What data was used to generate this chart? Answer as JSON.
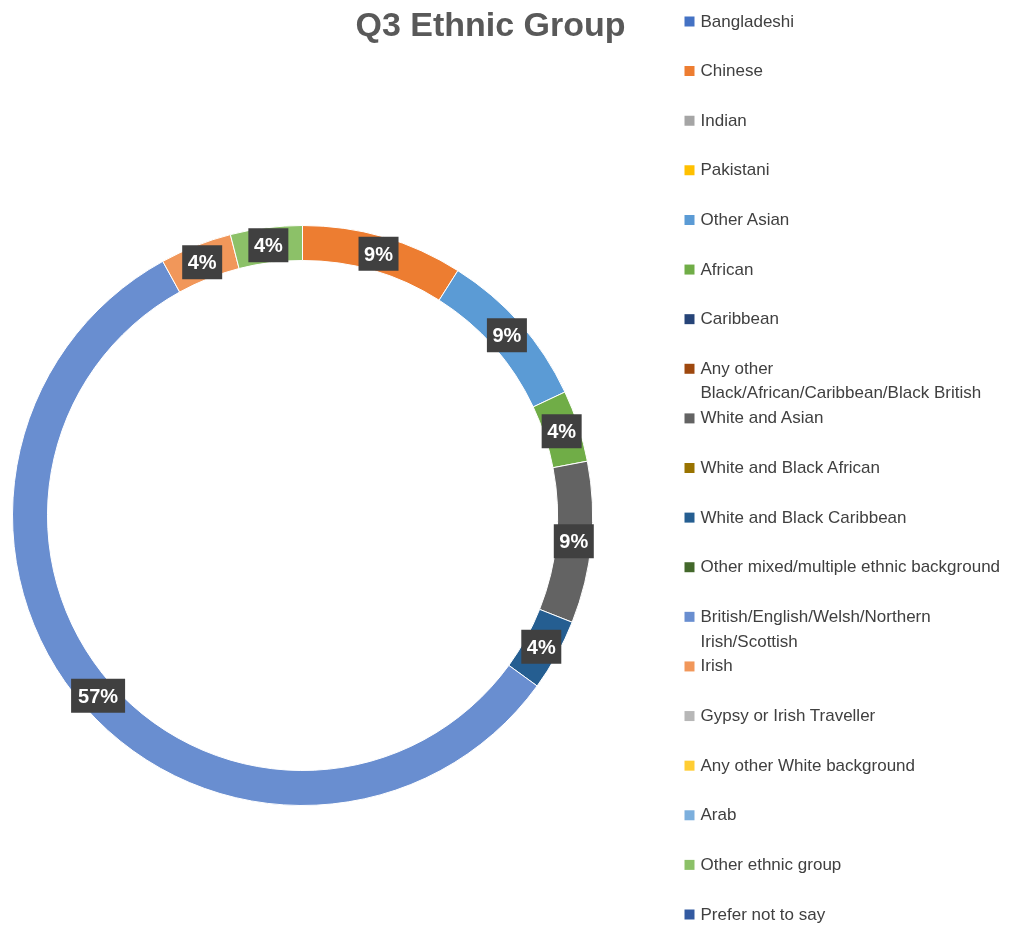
{
  "chart_data": {
    "type": "donut",
    "title": "Q3 Ethnic Group",
    "categories": [
      "Bangladeshi",
      "Chinese",
      "Indian",
      "Pakistani",
      "Other Asian",
      "African",
      "Caribbean",
      "Any other Black/African/Caribbean/Black British",
      "White and Asian",
      "White and Black African",
      "White and Black Caribbean",
      "Other mixed/multiple ethnic background",
      "British/English/Welsh/Northern Irish/Scottish",
      "Irish",
      "Gypsy or Irish Traveller",
      "Any other White background",
      "Arab",
      "Other ethnic group",
      "Prefer not to say"
    ],
    "values": [
      0,
      9,
      0,
      0,
      9,
      4,
      0,
      0,
      9,
      0,
      4,
      0,
      57,
      4,
      0,
      0,
      0,
      4,
      0
    ],
    "colors": [
      "#4472c4",
      "#ed7d31",
      "#a5a5a5",
      "#ffc000",
      "#5b9bd5",
      "#70ad47",
      "#264478",
      "#9e480e",
      "#636363",
      "#997300",
      "#255e91",
      "#43682b",
      "#698ed0",
      "#f1975a",
      "#b7b7b7",
      "#ffcd33",
      "#7cafdd",
      "#8cc168",
      "#335aa1"
    ],
    "value_labels": [
      null,
      "9%",
      null,
      null,
      "9%",
      "4%",
      null,
      null,
      "9%",
      null,
      "4%",
      null,
      "57%",
      "4%",
      null,
      null,
      null,
      "4%",
      null
    ],
    "legend": "right"
  }
}
